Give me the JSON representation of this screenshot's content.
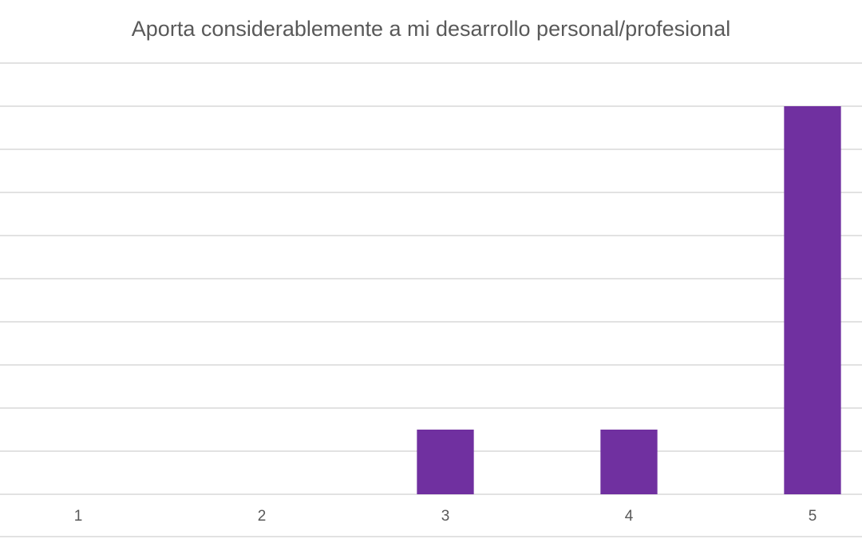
{
  "chart_data": {
    "type": "bar",
    "title": "Aporta considerablemente a mi desarrollo personal/profesional",
    "categories": [
      "1",
      "2",
      "3",
      "4",
      "5"
    ],
    "values": [
      0,
      0,
      3,
      3,
      18
    ],
    "color": "#7030a0",
    "ylim": [
      0,
      20
    ],
    "yticks": [
      0,
      2,
      4,
      6,
      8,
      10,
      12,
      14,
      16,
      18,
      20
    ],
    "grid": true
  }
}
